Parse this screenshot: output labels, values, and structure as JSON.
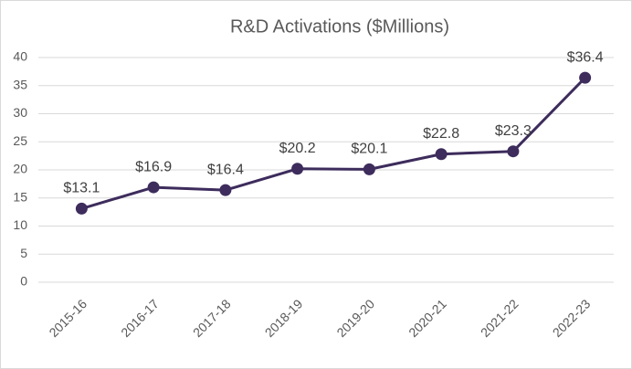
{
  "chart_data": {
    "type": "line",
    "title": "R&D Activations ($Millions)",
    "categories": [
      "2015-16",
      "2016-17",
      "2017-18",
      "2018-19",
      "2019-20",
      "2020-21",
      "2021-22",
      "2022-23"
    ],
    "values": [
      13.1,
      16.9,
      16.4,
      20.2,
      20.1,
      22.8,
      23.3,
      36.4
    ],
    "value_labels": [
      "$13.1",
      "$16.9",
      "$16.4",
      "$20.2",
      "$20.1",
      "$22.8",
      "$23.3",
      "$36.4"
    ],
    "color": "#3d2c5c",
    "ylim": [
      0,
      40
    ],
    "yticks": [
      0,
      5,
      10,
      15,
      20,
      25,
      30,
      35,
      40
    ],
    "grid": true
  }
}
